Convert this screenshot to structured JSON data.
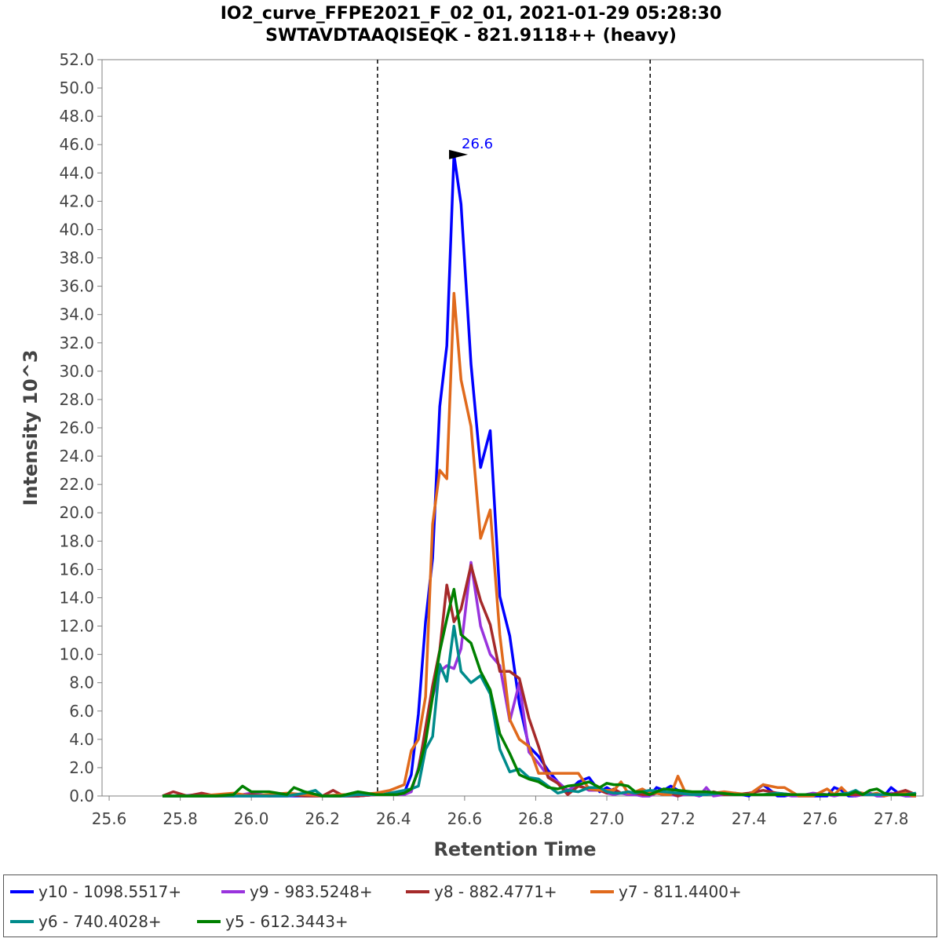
{
  "title_line1": "IO2_curve_FFPE2021_F_02_01, 2021-01-29 05:28:30",
  "title_line2": "SWTAVDTAAQISEQK - 821.9118++ (heavy)",
  "chart_data": {
    "type": "line",
    "xlabel": "Retention Time",
    "ylabel": "Intensity 10^3",
    "xlim": [
      25.58,
      27.89
    ],
    "ylim": [
      0,
      52
    ],
    "x_ticks": [
      "25.6",
      "25.8",
      "26.0",
      "26.2",
      "26.4",
      "26.6",
      "26.8",
      "27.0",
      "27.2",
      "27.4",
      "27.6",
      "27.8"
    ],
    "y_ticks": [
      "0.0",
      "2.0",
      "4.0",
      "6.0",
      "8.0",
      "10.0",
      "12.0",
      "14.0",
      "16.0",
      "18.0",
      "20.0",
      "22.0",
      "24.0",
      "26.0",
      "28.0",
      "30.0",
      "32.0",
      "34.0",
      "36.0",
      "38.0",
      "40.0",
      "42.0",
      "44.0",
      "46.0",
      "48.0",
      "50.0",
      "52.0"
    ],
    "grid": false,
    "legend_position": "bottom",
    "peak_boundaries": [
      26.355,
      27.122
    ],
    "peak_annotation": {
      "label": "26.6",
      "x": 26.618,
      "y": 45.3,
      "color": "#0000ff"
    },
    "series": [
      {
        "name": "y10 - 1098.5517+",
        "color": "#0000ff",
        "x": [
          25.75,
          25.8,
          25.85,
          25.9,
          25.95,
          26.0,
          26.05,
          26.1,
          26.15,
          26.2,
          26.25,
          26.3,
          26.35,
          26.37,
          26.39,
          26.41,
          26.43,
          26.45,
          26.47,
          26.49,
          26.51,
          26.53,
          26.55,
          26.57,
          26.59,
          26.618,
          26.645,
          26.672,
          26.699,
          26.727,
          26.754,
          26.781,
          26.808,
          26.835,
          26.862,
          26.89,
          26.92,
          26.95,
          26.98,
          27.0,
          27.02,
          27.04,
          27.06,
          27.08,
          27.1,
          27.12,
          27.14,
          27.16,
          27.18,
          27.2,
          27.22,
          27.24,
          27.26,
          27.28,
          27.3,
          27.33,
          27.36,
          27.4,
          27.44,
          27.48,
          27.5,
          27.52,
          27.54,
          27.58,
          27.62,
          27.64,
          27.66,
          27.68,
          27.7,
          27.72,
          27.74,
          27.76,
          27.78,
          27.8,
          27.82,
          27.84,
          27.86,
          27.87
        ],
        "y": [
          0,
          0,
          0,
          0,
          0,
          0,
          0,
          0,
          0,
          0,
          0,
          0,
          0.1,
          0.1,
          0.1,
          0.1,
          0.2,
          1.5,
          5.8,
          12.3,
          16.8,
          27.5,
          31.8,
          45.3,
          41.8,
          30.5,
          23.2,
          25.8,
          14.1,
          11.3,
          6.5,
          3.5,
          2.8,
          1.8,
          1.0,
          0.3,
          1.0,
          1.3,
          0.3,
          0.6,
          0.3,
          0.2,
          0.3,
          0.1,
          0.0,
          0.0,
          0.6,
          0.4,
          0.7,
          0.4,
          0.1,
          0.2,
          0.0,
          0.2,
          0.2,
          0.2,
          0.2,
          0.0,
          0.8,
          0.0,
          0.0,
          0.1,
          0.0,
          0.0,
          0.0,
          0.6,
          0.4,
          0.0,
          0.0,
          0.1,
          0.2,
          0.0,
          0.0,
          0.6,
          0.2,
          0.0,
          0.0,
          0.0
        ]
      },
      {
        "name": "y9 - 983.5248+",
        "color": "#9933dd",
        "x": [
          25.75,
          25.8,
          25.85,
          25.9,
          25.95,
          26.0,
          26.05,
          26.1,
          26.15,
          26.2,
          26.25,
          26.3,
          26.35,
          26.37,
          26.39,
          26.41,
          26.43,
          26.45,
          26.47,
          26.49,
          26.51,
          26.53,
          26.55,
          26.57,
          26.59,
          26.618,
          26.645,
          26.672,
          26.699,
          26.727,
          26.754,
          26.781,
          26.808,
          26.835,
          26.862,
          26.89,
          26.92,
          26.95,
          26.98,
          27.0,
          27.02,
          27.04,
          27.06,
          27.08,
          27.1,
          27.12,
          27.14,
          27.16,
          27.18,
          27.2,
          27.22,
          27.24,
          27.26,
          27.28,
          27.3,
          27.33,
          27.36,
          27.4,
          27.44,
          27.48,
          27.5,
          27.52,
          27.54,
          27.58,
          27.62,
          27.64,
          27.66,
          27.68,
          27.7,
          27.72,
          27.74,
          27.76,
          27.78,
          27.8,
          27.82,
          27.84,
          27.86,
          27.87
        ],
        "y": [
          0,
          0,
          0.1,
          0,
          0,
          0.2,
          0,
          0,
          0.1,
          0,
          0,
          0,
          0.1,
          0.1,
          0.1,
          0.1,
          0.1,
          0.3,
          2.0,
          4.5,
          7.0,
          8.8,
          9.2,
          9.0,
          10.4,
          16.5,
          12.0,
          10.0,
          9.2,
          5.3,
          8.0,
          3.1,
          2.3,
          1.4,
          1.0,
          0.4,
          0.8,
          0.4,
          0.4,
          0.2,
          0.1,
          0.2,
          0.1,
          0.1,
          0.0,
          0.0,
          0.2,
          0.1,
          0.1,
          0.0,
          0.1,
          0.1,
          0.0,
          0.6,
          0.0,
          0.1,
          0.1,
          0.1,
          0.1,
          0.1,
          0.1,
          0.0,
          0.0,
          0.2,
          0.1,
          0.0,
          0.1,
          0.1,
          0.0,
          0.1,
          0.2,
          0.0,
          0.0,
          0.2,
          0.1,
          0.0,
          0.0,
          0.0
        ]
      },
      {
        "name": "y8 - 882.4771+",
        "color": "#a52a2a",
        "x": [
          25.75,
          25.78,
          25.82,
          25.86,
          25.9,
          25.95,
          26.0,
          26.05,
          26.1,
          26.15,
          26.2,
          26.23,
          26.26,
          26.3,
          26.35,
          26.37,
          26.39,
          26.41,
          26.43,
          26.45,
          26.47,
          26.49,
          26.51,
          26.53,
          26.55,
          26.57,
          26.59,
          26.618,
          26.645,
          26.672,
          26.699,
          26.727,
          26.754,
          26.781,
          26.808,
          26.835,
          26.862,
          26.89,
          26.92,
          26.95,
          26.98,
          27.0,
          27.02,
          27.04,
          27.06,
          27.08,
          27.1,
          27.12,
          27.14,
          27.16,
          27.18,
          27.2,
          27.22,
          27.24,
          27.26,
          27.28,
          27.3,
          27.33,
          27.36,
          27.4,
          27.44,
          27.48,
          27.52,
          27.56,
          27.6,
          27.64,
          27.68,
          27.72,
          27.76,
          27.8,
          27.84,
          27.87
        ],
        "y": [
          0,
          0.3,
          0,
          0.2,
          0,
          0,
          0.1,
          0,
          0.1,
          0,
          0,
          0.4,
          0,
          0,
          0.1,
          0.1,
          0.1,
          0.1,
          0.2,
          0.5,
          1.8,
          4.8,
          7.8,
          10.3,
          14.9,
          12.3,
          13.2,
          16.3,
          13.8,
          12.1,
          8.8,
          8.8,
          8.3,
          5.5,
          3.5,
          1.3,
          0.9,
          0.1,
          0.7,
          0.5,
          0.4,
          0.2,
          0.5,
          0.2,
          0.3,
          0.2,
          0.1,
          0.1,
          0.2,
          0.1,
          0.2,
          0.0,
          0.2,
          0.1,
          0.2,
          0.1,
          0.3,
          0.1,
          0.1,
          0.2,
          0.4,
          0.2,
          0.1,
          0.1,
          0.1,
          0.1,
          0.1,
          0.1,
          0.1,
          0.1,
          0.4,
          0.1
        ]
      },
      {
        "name": "y7 - 811.4400+",
        "color": "#e06a1c",
        "x": [
          25.75,
          25.8,
          25.85,
          25.9,
          25.95,
          26.0,
          26.05,
          26.1,
          26.15,
          26.2,
          26.25,
          26.3,
          26.35,
          26.37,
          26.39,
          26.41,
          26.43,
          26.45,
          26.47,
          26.49,
          26.51,
          26.53,
          26.55,
          26.57,
          26.59,
          26.618,
          26.645,
          26.672,
          26.699,
          26.727,
          26.754,
          26.781,
          26.808,
          26.835,
          26.862,
          26.89,
          26.92,
          26.95,
          26.98,
          27.0,
          27.02,
          27.04,
          27.06,
          27.08,
          27.1,
          27.12,
          27.14,
          27.16,
          27.18,
          27.2,
          27.22,
          27.24,
          27.26,
          27.28,
          27.3,
          27.33,
          27.36,
          27.4,
          27.44,
          27.48,
          27.5,
          27.52,
          27.54,
          27.58,
          27.62,
          27.64,
          27.66,
          27.68,
          27.7,
          27.72,
          27.74,
          27.76,
          27.78,
          27.8,
          27.82,
          27.84,
          27.86,
          27.87
        ],
        "y": [
          0,
          0,
          0,
          0.1,
          0.2,
          0,
          0.1,
          0.2,
          0.1,
          0,
          0.1,
          0.1,
          0.2,
          0.3,
          0.4,
          0.6,
          0.8,
          3.2,
          4.0,
          7.0,
          19.2,
          23.0,
          22.4,
          35.5,
          29.4,
          26.1,
          18.2,
          20.2,
          11.4,
          5.4,
          4.0,
          3.5,
          1.6,
          1.6,
          1.6,
          1.6,
          1.6,
          0.5,
          0.4,
          0.4,
          0.4,
          1.0,
          0.2,
          0.3,
          0.5,
          0.2,
          0.2,
          0.1,
          0.1,
          1.4,
          0.3,
          0.2,
          0.2,
          0.2,
          0.2,
          0.3,
          0.2,
          0.1,
          0.8,
          0.6,
          0.6,
          0.3,
          0.0,
          0.0,
          0.5,
          0.1,
          0.6,
          0.1,
          0.3,
          0.2,
          0.1,
          0.2,
          0.0,
          0.1,
          0.1,
          0.2,
          0.0,
          0.0
        ]
      },
      {
        "name": "y6 - 740.4028+",
        "color": "#008b8b",
        "x": [
          25.75,
          25.8,
          25.85,
          25.9,
          25.95,
          26.0,
          26.05,
          26.1,
          26.15,
          26.18,
          26.2,
          26.23,
          26.26,
          26.3,
          26.35,
          26.37,
          26.39,
          26.41,
          26.43,
          26.45,
          26.47,
          26.49,
          26.51,
          26.53,
          26.55,
          26.57,
          26.59,
          26.618,
          26.645,
          26.672,
          26.699,
          26.727,
          26.754,
          26.781,
          26.808,
          26.835,
          26.862,
          26.89,
          26.92,
          26.95,
          26.98,
          27.0,
          27.02,
          27.04,
          27.06,
          27.08,
          27.1,
          27.12,
          27.16,
          27.2,
          27.24,
          27.28,
          27.32,
          27.36,
          27.4,
          27.44,
          27.48,
          27.52,
          27.56,
          27.6,
          27.64,
          27.68,
          27.7,
          27.72,
          27.76,
          27.8,
          27.84,
          27.87
        ],
        "y": [
          0,
          0,
          0,
          0,
          0,
          0,
          0,
          0,
          0.2,
          0.4,
          0.0,
          0.0,
          0.0,
          0.1,
          0.1,
          0.1,
          0.2,
          0.3,
          0.4,
          0.5,
          0.7,
          3.3,
          4.2,
          9.3,
          8.1,
          12.0,
          8.8,
          8.0,
          8.5,
          7.2,
          3.3,
          1.7,
          1.9,
          1.3,
          1.2,
          0.7,
          0.2,
          0.4,
          0.3,
          0.6,
          0.6,
          0.3,
          0.2,
          0.2,
          0.3,
          0.2,
          0.3,
          0.4,
          0.3,
          0.2,
          0.1,
          0.1,
          0.2,
          0.1,
          0.1,
          0.1,
          0.2,
          0.1,
          0.1,
          0.1,
          0.1,
          0.2,
          0.4,
          0.1,
          0.1,
          0.1,
          0.1,
          0.2
        ]
      },
      {
        "name": "y5 - 612.3443+",
        "color": "#008000",
        "x": [
          25.75,
          25.8,
          25.85,
          25.9,
          25.95,
          25.975,
          26.0,
          26.05,
          26.1,
          26.12,
          26.15,
          26.2,
          26.25,
          26.3,
          26.35,
          26.37,
          26.39,
          26.41,
          26.43,
          26.45,
          26.47,
          26.49,
          26.51,
          26.53,
          26.55,
          26.57,
          26.59,
          26.618,
          26.645,
          26.672,
          26.699,
          26.727,
          26.754,
          26.781,
          26.808,
          26.835,
          26.862,
          26.89,
          26.92,
          26.95,
          26.98,
          27.0,
          27.02,
          27.04,
          27.06,
          27.08,
          27.1,
          27.12,
          27.16,
          27.2,
          27.24,
          27.28,
          27.32,
          27.36,
          27.4,
          27.44,
          27.48,
          27.52,
          27.56,
          27.6,
          27.64,
          27.68,
          27.7,
          27.72,
          27.74,
          27.76,
          27.78,
          27.8,
          27.84,
          27.87
        ],
        "y": [
          0,
          0,
          0,
          0,
          0.1,
          0.7,
          0.3,
          0.3,
          0.1,
          0.6,
          0.3,
          0,
          0,
          0.3,
          0.1,
          0.1,
          0.1,
          0.1,
          0.2,
          0.5,
          1.8,
          3.8,
          7.0,
          10.2,
          12.5,
          14.6,
          11.4,
          10.8,
          8.8,
          7.5,
          4.4,
          3.0,
          1.5,
          1.2,
          1.0,
          0.6,
          0.5,
          0.7,
          0.8,
          1.0,
          0.6,
          0.9,
          0.8,
          0.8,
          0.7,
          0.3,
          0.3,
          0.1,
          0.5,
          0.4,
          0.3,
          0.3,
          0.2,
          0.1,
          0.1,
          0.1,
          0.1,
          0.1,
          0.1,
          0.1,
          0.1,
          0.1,
          0.3,
          0.1,
          0.4,
          0.5,
          0.2,
          0.1,
          0.1,
          0.1
        ]
      }
    ]
  }
}
